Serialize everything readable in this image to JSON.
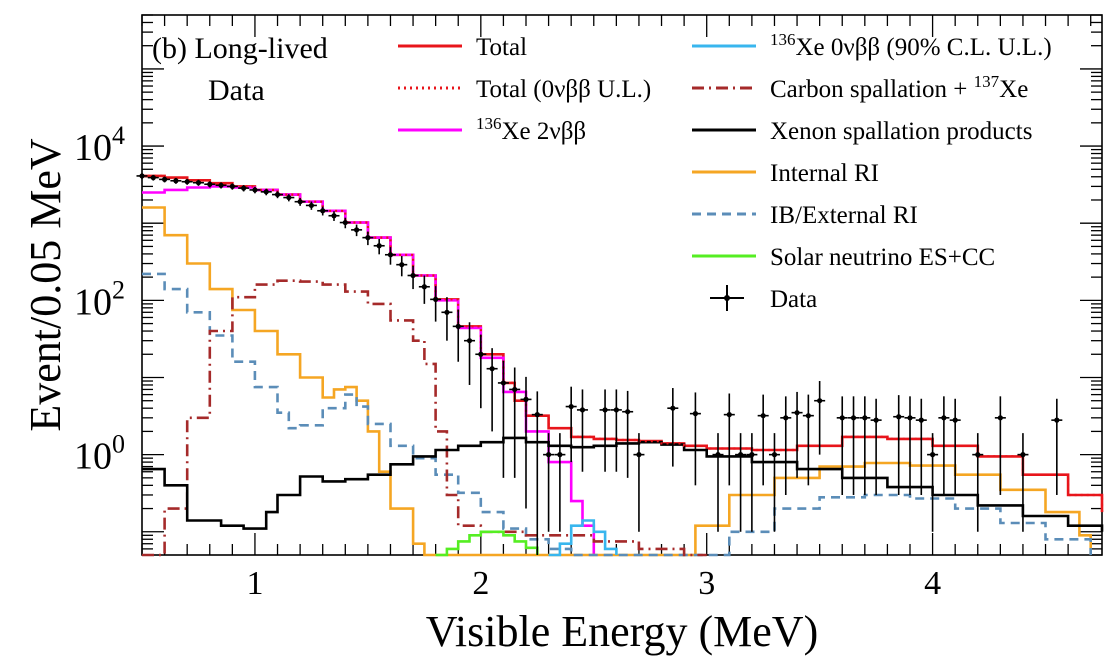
{
  "chart_data": {
    "type": "line",
    "xlabel": "Visible Energy (MeV)",
    "ylabel": "Event/0.05 MeV",
    "yscale": "log",
    "xlim": [
      0.5,
      4.75
    ],
    "ylim": [
      0.05,
      500000.0
    ],
    "x_ticks": [
      "1",
      "2",
      "3",
      "4"
    ],
    "y_ticks": [
      {
        "base": "10",
        "exp": "0"
      },
      {
        "base": "10",
        "exp": "2"
      },
      {
        "base": "10",
        "exp": "4"
      }
    ],
    "annotation": {
      "line1": "(b) Long-lived",
      "line2": "Data"
    },
    "legend_left": [
      {
        "label": "Total",
        "color": "#e8151b",
        "style": "solid"
      },
      {
        "label": "Total (0νββ U.L.)",
        "color": "#e8151b",
        "style": "dotted"
      },
      {
        "label_sup": "136",
        "label_main": "Xe 2νββ",
        "color": "#ff00ff",
        "style": "solid"
      }
    ],
    "legend_right": [
      {
        "label_sup": "136",
        "label_main": "Xe 0νββ (90% C.L. U.L.)",
        "color": "#38b6ee",
        "style": "solid"
      },
      {
        "label_main": "Carbon spallation + ",
        "label_sup": "137",
        "label_tail": "Xe",
        "color": "#a52a2a",
        "style": "dashdot"
      },
      {
        "label": "Xenon spallation products",
        "color": "#000000",
        "style": "solid"
      },
      {
        "label": "Internal RI",
        "color": "#f5a623",
        "style": "solid"
      },
      {
        "label": "IB/External RI",
        "color": "#5b8db8",
        "style": "dashed"
      },
      {
        "label": "Solar neutrino ES+CC",
        "color": "#55ee22",
        "style": "solid"
      },
      {
        "label": "Data",
        "color": "#000000",
        "style": "errorbar"
      }
    ],
    "series": [
      {
        "name": "Total",
        "color": "#e8151b",
        "style": "solid",
        "points": [
          [
            0.5,
            4100
          ],
          [
            0.6,
            3900
          ],
          [
            0.7,
            3600
          ],
          [
            0.8,
            3300
          ],
          [
            0.9,
            3000
          ],
          [
            1.0,
            2700
          ],
          [
            1.1,
            2350
          ],
          [
            1.2,
            1900
          ],
          [
            1.3,
            1450
          ],
          [
            1.4,
            1020
          ],
          [
            1.5,
            650
          ],
          [
            1.6,
            390
          ],
          [
            1.7,
            210
          ],
          [
            1.8,
            103
          ],
          [
            1.9,
            46
          ],
          [
            2.0,
            20
          ],
          [
            2.1,
            8.5
          ],
          [
            2.15,
            5
          ],
          [
            2.2,
            3.2
          ],
          [
            2.3,
            2.2
          ],
          [
            2.4,
            1.7
          ],
          [
            2.5,
            1.6
          ],
          [
            2.6,
            1.55
          ],
          [
            2.7,
            1.5
          ],
          [
            2.8,
            1.4
          ],
          [
            2.9,
            1.3
          ],
          [
            3.0,
            1.2
          ],
          [
            3.2,
            1.15
          ],
          [
            3.4,
            1.3
          ],
          [
            3.6,
            1.7
          ],
          [
            3.8,
            1.6
          ],
          [
            4.0,
            1.3
          ],
          [
            4.2,
            0.95
          ],
          [
            4.4,
            0.55
          ],
          [
            4.6,
            0.3
          ],
          [
            4.75,
            0.18
          ]
        ]
      },
      {
        "name": "136Xe 2νββ",
        "color": "#ff00ff",
        "style": "solid",
        "points": [
          [
            0.5,
            2500
          ],
          [
            0.6,
            2700
          ],
          [
            0.7,
            2900
          ],
          [
            0.8,
            3000
          ],
          [
            0.9,
            2900
          ],
          [
            1.0,
            2700
          ],
          [
            1.1,
            2350
          ],
          [
            1.2,
            1900
          ],
          [
            1.3,
            1450
          ],
          [
            1.4,
            1020
          ],
          [
            1.5,
            650
          ],
          [
            1.6,
            390
          ],
          [
            1.7,
            210
          ],
          [
            1.8,
            100
          ],
          [
            1.9,
            44
          ],
          [
            2.0,
            18
          ],
          [
            2.1,
            6.5
          ],
          [
            2.2,
            2.0
          ],
          [
            2.3,
            0.8
          ],
          [
            2.4,
            0.25
          ],
          [
            2.45,
            0.12
          ],
          [
            2.5,
            0.05
          ]
        ]
      },
      {
        "name": "Internal RI",
        "color": "#f5a623",
        "style": "solid",
        "points": [
          [
            0.5,
            1600
          ],
          [
            0.6,
            700
          ],
          [
            0.7,
            300
          ],
          [
            0.8,
            140
          ],
          [
            0.9,
            75
          ],
          [
            1.0,
            40
          ],
          [
            1.1,
            20
          ],
          [
            1.2,
            10
          ],
          [
            1.3,
            5.5
          ],
          [
            1.35,
            7
          ],
          [
            1.4,
            7.5
          ],
          [
            1.45,
            5
          ],
          [
            1.5,
            2
          ],
          [
            1.55,
            0.6
          ],
          [
            1.6,
            0.2
          ],
          [
            1.7,
            0.07
          ],
          [
            1.75,
            0.05
          ],
          [
            2.9,
            0.05
          ],
          [
            2.95,
            0.12
          ],
          [
            3.1,
            0.3
          ],
          [
            3.3,
            0.5
          ],
          [
            3.5,
            0.7
          ],
          [
            3.7,
            0.78
          ],
          [
            3.9,
            0.72
          ],
          [
            4.1,
            0.55
          ],
          [
            4.3,
            0.35
          ],
          [
            4.5,
            0.18
          ],
          [
            4.65,
            0.09
          ],
          [
            4.7,
            0.05
          ]
        ]
      },
      {
        "name": "IB/External RI",
        "color": "#5b8db8",
        "style": "dashed",
        "points": [
          [
            0.5,
            220
          ],
          [
            0.6,
            140
          ],
          [
            0.7,
            70
          ],
          [
            0.8,
            35
          ],
          [
            0.9,
            16
          ],
          [
            1.0,
            7.5
          ],
          [
            1.1,
            3.5
          ],
          [
            1.15,
            2.2
          ],
          [
            1.2,
            2.4
          ],
          [
            1.3,
            4
          ],
          [
            1.4,
            6
          ],
          [
            1.45,
            4.2
          ],
          [
            1.5,
            2.5
          ],
          [
            1.6,
            1.3
          ],
          [
            1.7,
            0.9
          ],
          [
            1.8,
            0.55
          ],
          [
            1.9,
            0.32
          ],
          [
            2.0,
            0.18
          ],
          [
            2.1,
            0.11
          ],
          [
            2.2,
            0.08
          ],
          [
            2.3,
            0.06
          ],
          [
            2.4,
            0.05
          ],
          [
            3.0,
            0.05
          ],
          [
            3.1,
            0.1
          ],
          [
            3.3,
            0.2
          ],
          [
            3.5,
            0.28
          ],
          [
            3.7,
            0.3
          ],
          [
            3.9,
            0.27
          ],
          [
            4.1,
            0.2
          ],
          [
            4.3,
            0.13
          ],
          [
            4.5,
            0.08
          ],
          [
            4.7,
            0.05
          ]
        ]
      },
      {
        "name": "Carbon spallation + 137Xe",
        "color": "#a52a2a",
        "style": "dashdot",
        "points": [
          [
            0.5,
            0.05
          ],
          [
            0.6,
            0.2
          ],
          [
            0.7,
            3
          ],
          [
            0.8,
            40
          ],
          [
            0.9,
            110
          ],
          [
            1.0,
            160
          ],
          [
            1.1,
            180
          ],
          [
            1.2,
            175
          ],
          [
            1.3,
            160
          ],
          [
            1.4,
            130
          ],
          [
            1.5,
            90
          ],
          [
            1.6,
            55
          ],
          [
            1.7,
            30
          ],
          [
            1.75,
            15
          ],
          [
            1.8,
            2
          ],
          [
            1.85,
            0.3
          ],
          [
            1.9,
            0.12
          ],
          [
            2.0,
            0.1
          ],
          [
            2.2,
            0.09
          ],
          [
            2.5,
            0.075
          ],
          [
            2.7,
            0.06
          ],
          [
            2.9,
            0.05
          ],
          [
            3.0,
            0.045
          ]
        ]
      },
      {
        "name": "Xenon spallation products",
        "color": "#000000",
        "style": "solid",
        "points": [
          [
            0.5,
            0.65
          ],
          [
            0.6,
            0.4
          ],
          [
            0.7,
            0.14
          ],
          [
            0.85,
            0.12
          ],
          [
            0.95,
            0.11
          ],
          [
            1.05,
            0.18
          ],
          [
            1.1,
            0.3
          ],
          [
            1.2,
            0.52
          ],
          [
            1.3,
            0.45
          ],
          [
            1.4,
            0.48
          ],
          [
            1.5,
            0.55
          ],
          [
            1.6,
            0.75
          ],
          [
            1.7,
            0.95
          ],
          [
            1.8,
            1.15
          ],
          [
            1.9,
            1.3
          ],
          [
            2.0,
            1.45
          ],
          [
            2.1,
            1.65
          ],
          [
            2.2,
            1.45
          ],
          [
            2.3,
            1.3
          ],
          [
            2.4,
            1.25
          ],
          [
            2.5,
            1.3
          ],
          [
            2.6,
            1.4
          ],
          [
            2.7,
            1.45
          ],
          [
            2.8,
            1.35
          ],
          [
            2.9,
            1.15
          ],
          [
            3.0,
            0.95
          ],
          [
            3.2,
            0.8
          ],
          [
            3.4,
            0.65
          ],
          [
            3.6,
            0.5
          ],
          [
            3.8,
            0.38
          ],
          [
            4.0,
            0.3
          ],
          [
            4.2,
            0.22
          ],
          [
            4.4,
            0.16
          ],
          [
            4.6,
            0.12
          ],
          [
            4.75,
            0.1
          ]
        ]
      },
      {
        "name": "Solar neutrino ES+CC",
        "color": "#55ee22",
        "style": "solid",
        "points": [
          [
            1.8,
            0.05
          ],
          [
            1.85,
            0.06
          ],
          [
            1.9,
            0.075
          ],
          [
            1.95,
            0.09
          ],
          [
            2.0,
            0.1
          ],
          [
            2.05,
            0.1
          ],
          [
            2.1,
            0.09
          ],
          [
            2.15,
            0.075
          ],
          [
            2.2,
            0.062
          ],
          [
            2.25,
            0.05
          ]
        ]
      },
      {
        "name": "136Xe 0νββ (90% C.L. U.L.)",
        "color": "#38b6ee",
        "style": "solid",
        "points": [
          [
            2.3,
            0.05
          ],
          [
            2.35,
            0.07
          ],
          [
            2.4,
            0.12
          ],
          [
            2.45,
            0.14
          ],
          [
            2.5,
            0.1
          ],
          [
            2.55,
            0.06
          ],
          [
            2.6,
            0.05
          ]
        ]
      }
    ],
    "data_points": [
      [
        0.5,
        4100,
        350
      ],
      [
        0.55,
        3900,
        330
      ],
      [
        0.6,
        3700,
        320
      ],
      [
        0.65,
        3550,
        310
      ],
      [
        0.7,
        3450,
        300
      ],
      [
        0.75,
        3350,
        300
      ],
      [
        0.8,
        3200,
        290
      ],
      [
        0.85,
        3100,
        280
      ],
      [
        0.9,
        3000,
        280
      ],
      [
        0.95,
        2850,
        270
      ],
      [
        1.0,
        2700,
        260
      ],
      [
        1.05,
        2550,
        250
      ],
      [
        1.1,
        2350,
        240
      ],
      [
        1.15,
        2150,
        230
      ],
      [
        1.2,
        1900,
        220
      ],
      [
        1.25,
        1700,
        210
      ],
      [
        1.3,
        1450,
        190
      ],
      [
        1.35,
        1250,
        180
      ],
      [
        1.4,
        1020,
        160
      ],
      [
        1.45,
        820,
        140
      ],
      [
        1.5,
        650,
        130
      ],
      [
        1.55,
        510,
        115
      ],
      [
        1.6,
        390,
        100
      ],
      [
        1.65,
        290,
        85
      ],
      [
        1.7,
        210,
        70
      ],
      [
        1.75,
        150,
        60
      ],
      [
        1.8,
        103,
        50
      ],
      [
        1.85,
        70,
        40
      ],
      [
        1.9,
        46,
        30
      ],
      [
        1.95,
        30,
        22
      ],
      [
        2.0,
        20,
        16
      ],
      [
        2.05,
        13,
        11
      ],
      [
        2.1,
        8.5,
        8
      ],
      [
        2.15,
        7,
        6.5
      ],
      [
        2.2,
        5.2,
        5
      ],
      [
        2.25,
        3.3,
        3.3
      ],
      [
        2.3,
        1.0,
        0.9
      ],
      [
        2.35,
        1.0,
        0.9
      ],
      [
        2.4,
        4.2,
        3.4
      ],
      [
        2.45,
        3.8,
        3.2
      ],
      [
        2.55,
        3.8,
        3.2
      ],
      [
        2.6,
        3.8,
        3.2
      ],
      [
        2.65,
        3.6,
        3.1
      ],
      [
        2.7,
        1.0,
        0.9
      ],
      [
        2.85,
        4.0,
        3.3
      ],
      [
        2.95,
        3.4,
        3.0
      ],
      [
        3.05,
        1.0,
        0.9
      ],
      [
        3.1,
        3.3,
        2.9
      ],
      [
        3.15,
        1.0,
        0.9
      ],
      [
        3.2,
        1.0,
        0.9
      ],
      [
        3.25,
        3.2,
        2.8
      ],
      [
        3.3,
        1.0,
        0.9
      ],
      [
        3.35,
        3.0,
        2.7
      ],
      [
        3.4,
        3.5,
        3.0
      ],
      [
        3.45,
        3.2,
        2.8
      ],
      [
        3.5,
        5.0,
        4.0
      ],
      [
        3.6,
        3.0,
        2.7
      ],
      [
        3.65,
        3.0,
        2.7
      ],
      [
        3.7,
        3.0,
        2.7
      ],
      [
        3.75,
        2.8,
        2.5
      ],
      [
        3.85,
        3.1,
        2.8
      ],
      [
        3.9,
        3.0,
        2.7
      ],
      [
        3.95,
        2.8,
        2.5
      ],
      [
        4.0,
        1.0,
        0.9
      ],
      [
        4.05,
        3.0,
        2.7
      ],
      [
        4.1,
        2.8,
        2.5
      ],
      [
        4.2,
        1.0,
        0.9
      ],
      [
        4.3,
        3.0,
        2.7
      ],
      [
        4.4,
        1.0,
        0.9
      ],
      [
        4.55,
        2.8,
        2.5
      ]
    ]
  }
}
